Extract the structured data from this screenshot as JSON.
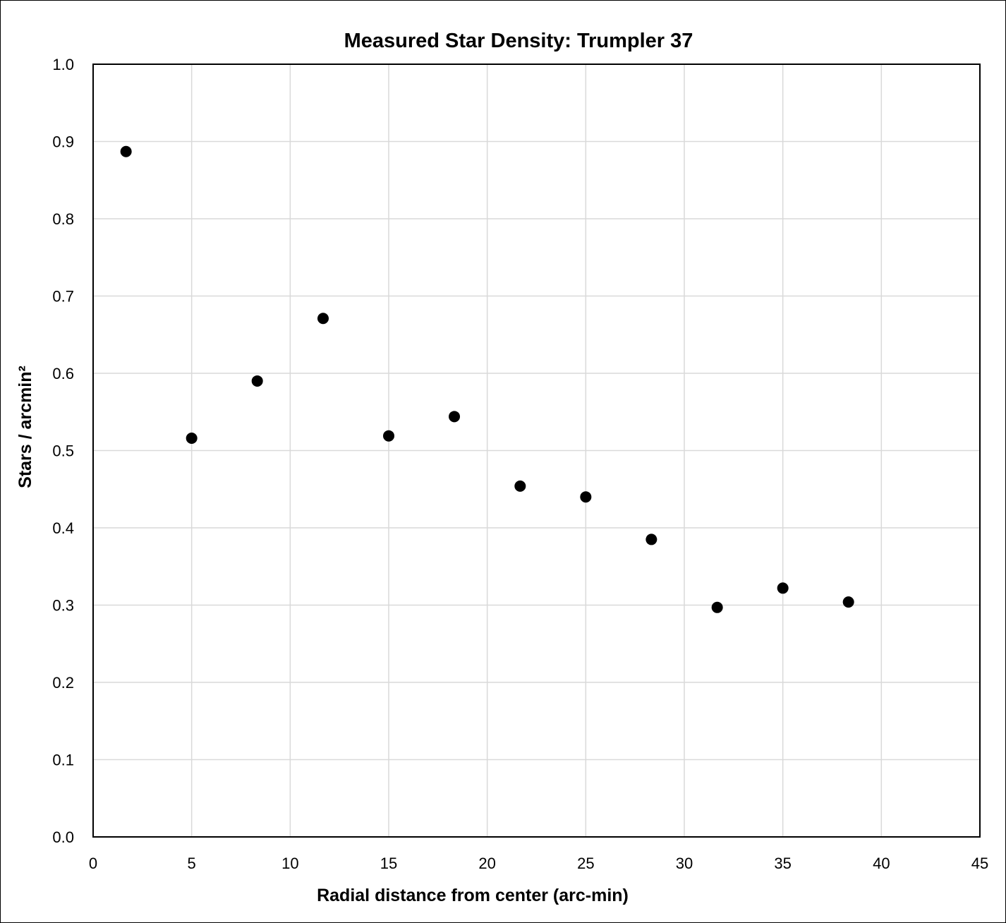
{
  "chart_data": {
    "type": "scatter",
    "title": "Measured Star Density: Trumpler 37",
    "xlabel": "Radial distance from center (arc-min)",
    "ylabel": "Stars / arcmin²",
    "xlim": [
      0,
      45
    ],
    "ylim": [
      0,
      1.0
    ],
    "x_ticks": [
      "0",
      "5",
      "10",
      "15",
      "20",
      "25",
      "30",
      "35",
      "40",
      "45"
    ],
    "y_ticks": [
      "0.0",
      "0.1",
      "0.2",
      "0.3",
      "0.4",
      "0.5",
      "0.6",
      "0.7",
      "0.8",
      "0.9",
      "1.0"
    ],
    "grid": true,
    "legend": "none",
    "marker_color": "#000000",
    "series": [
      {
        "x": [
          1.67,
          5.0,
          8.33,
          11.67,
          15.0,
          18.33,
          21.67,
          25.0,
          28.33,
          31.67,
          35.0,
          38.33
        ],
        "y": [
          0.887,
          0.516,
          0.59,
          0.671,
          0.519,
          0.544,
          0.454,
          0.44,
          0.385,
          0.297,
          0.322,
          0.304
        ]
      }
    ]
  }
}
